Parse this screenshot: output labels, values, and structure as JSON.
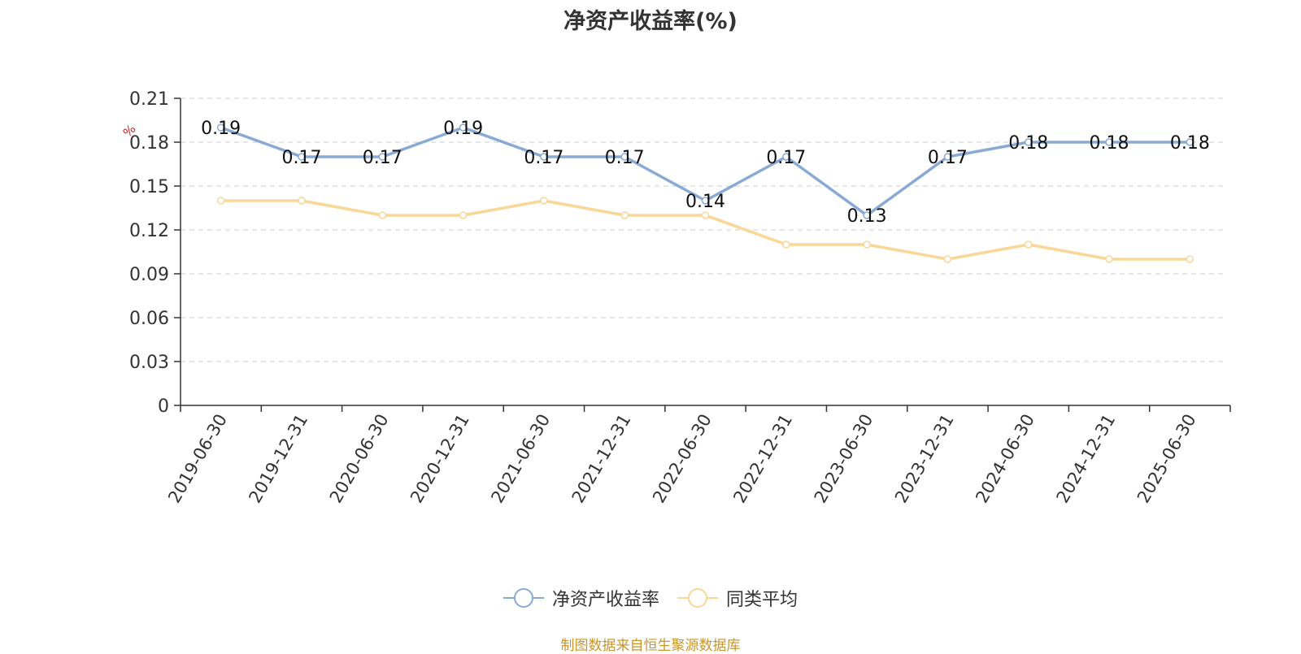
{
  "title": "净资产收益率(%)",
  "unit": "%",
  "source": "制图数据来自恒生聚源数据库",
  "legend": [
    {
      "label": "净资产收益率",
      "color": "#8aaad6"
    },
    {
      "label": "同类平均",
      "color": "#fad796"
    }
  ],
  "chart_data": {
    "type": "line",
    "title": "净资产收益率(%)",
    "xlabel": "",
    "ylabel": "%",
    "categories": [
      "2019-06-30",
      "2019-12-31",
      "2020-06-30",
      "2020-12-31",
      "2021-06-30",
      "2021-12-31",
      "2022-06-30",
      "2022-12-31",
      "2023-06-30",
      "2023-12-31",
      "2024-06-30",
      "2024-12-31",
      "2025-06-30"
    ],
    "ylim": [
      0,
      0.21
    ],
    "yticks": [
      "0",
      "0.03",
      "0.06",
      "0.09",
      "0.12",
      "0.15",
      "0.18",
      "0.21"
    ],
    "grid": true,
    "legend_position": "bottom",
    "series": [
      {
        "name": "净资产收益率",
        "color": "#8aaad6",
        "show_labels": true,
        "values": [
          0.19,
          0.17,
          0.17,
          0.19,
          0.17,
          0.17,
          0.14,
          0.17,
          0.13,
          0.17,
          0.18,
          0.18,
          0.18
        ],
        "labels": [
          "0.19",
          "0.17",
          "0.17",
          "0.19",
          "0.17",
          "0.17",
          "0.14",
          "0.17",
          "0.13",
          "0.17",
          "0.18",
          "0.18",
          "0.18"
        ]
      },
      {
        "name": "同类平均",
        "color": "#fad796",
        "show_labels": false,
        "values": [
          0.14,
          0.14,
          0.13,
          0.13,
          0.14,
          0.13,
          0.13,
          0.11,
          0.11,
          0.1,
          0.11,
          0.1,
          0.1
        ]
      }
    ]
  }
}
